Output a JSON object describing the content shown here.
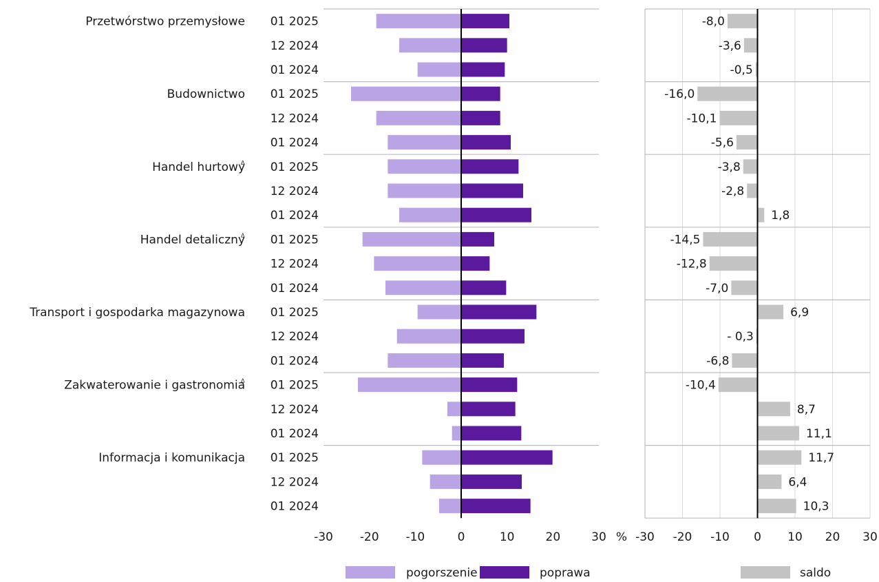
{
  "chart_data": [
    {
      "type": "bar",
      "orientation": "horizontal",
      "stacked": "diverging",
      "sectors": [
        {
          "name": "Przetwórstwo przemysłowe",
          "marker": ""
        },
        {
          "name": "Budownictwo",
          "marker": ""
        },
        {
          "name": "Handel hurtowy",
          "marker": "Δ"
        },
        {
          "name": "Handel detaliczny",
          "marker": "Δ"
        },
        {
          "name": "Transport i gospodarka magazynowa",
          "marker": ""
        },
        {
          "name": "Zakwaterowanie i gastronomia",
          "marker": "Δ"
        },
        {
          "name": "Informacja i komunikacja",
          "marker": ""
        }
      ],
      "periods": [
        "01 2025",
        "12 2024",
        "01 2024"
      ],
      "series": [
        {
          "name": "pogorszenie",
          "color": "#bba4e6",
          "values": [
            [
              -18.5,
              -13.5,
              -9.5
            ],
            [
              -24,
              -18.5,
              -16
            ],
            [
              -16,
              -16,
              -13.5
            ],
            [
              -21.5,
              -19,
              -16.5
            ],
            [
              -9.5,
              -14,
              -16
            ],
            [
              -22.5,
              -3,
              -2
            ],
            [
              -8.5,
              -6.8,
              -4.8
            ]
          ]
        },
        {
          "name": "poprawa",
          "color": "#5b1a9e",
          "values": [
            [
              10.5,
              10,
              9.5
            ],
            [
              8.5,
              8.5,
              10.8
            ],
            [
              12.5,
              13.5,
              15.3
            ],
            [
              7.2,
              6.2,
              9.8
            ],
            [
              16.4,
              13.8,
              9.3
            ],
            [
              12.2,
              11.8,
              13.1
            ],
            [
              19.9,
              13.2,
              15.1
            ]
          ]
        }
      ],
      "xlim": [
        -30,
        30
      ],
      "xticks": [
        -30,
        -20,
        -10,
        0,
        10,
        20,
        30
      ],
      "xunit": "%",
      "grid": "horizontal-separators",
      "legend": "bottom"
    },
    {
      "type": "bar",
      "orientation": "horizontal",
      "series": [
        {
          "name": "saldo",
          "color": "#c4c4c4",
          "values": [
            [
              -8.0,
              -3.6,
              -0.5
            ],
            [
              -16.0,
              -10.1,
              -5.6
            ],
            [
              -3.8,
              -2.8,
              1.8
            ],
            [
              -14.5,
              -12.8,
              -7.0
            ],
            [
              6.9,
              -0.3,
              -6.8
            ],
            [
              -10.4,
              8.7,
              11.1
            ],
            [
              11.7,
              6.4,
              10.3
            ]
          ],
          "labels": [
            [
              "-8,0",
              "-3,6",
              "-0,5"
            ],
            [
              "-16,0",
              "-10,1",
              "-5,6"
            ],
            [
              "-3,8",
              "-2,8",
              "1,8"
            ],
            [
              "-14,5",
              "-12,8",
              "-7,0"
            ],
            [
              "6,9",
              "- 0,3",
              "-6,8"
            ],
            [
              "-10,4",
              "8,7",
              "11,1"
            ],
            [
              "11,7",
              "6,4",
              "10,3"
            ]
          ]
        }
      ],
      "xlim": [
        -30,
        30
      ],
      "xticks": [
        -30,
        -20,
        -10,
        0,
        10,
        20,
        30
      ],
      "grid": "vertical",
      "legend": "bottom"
    }
  ]
}
